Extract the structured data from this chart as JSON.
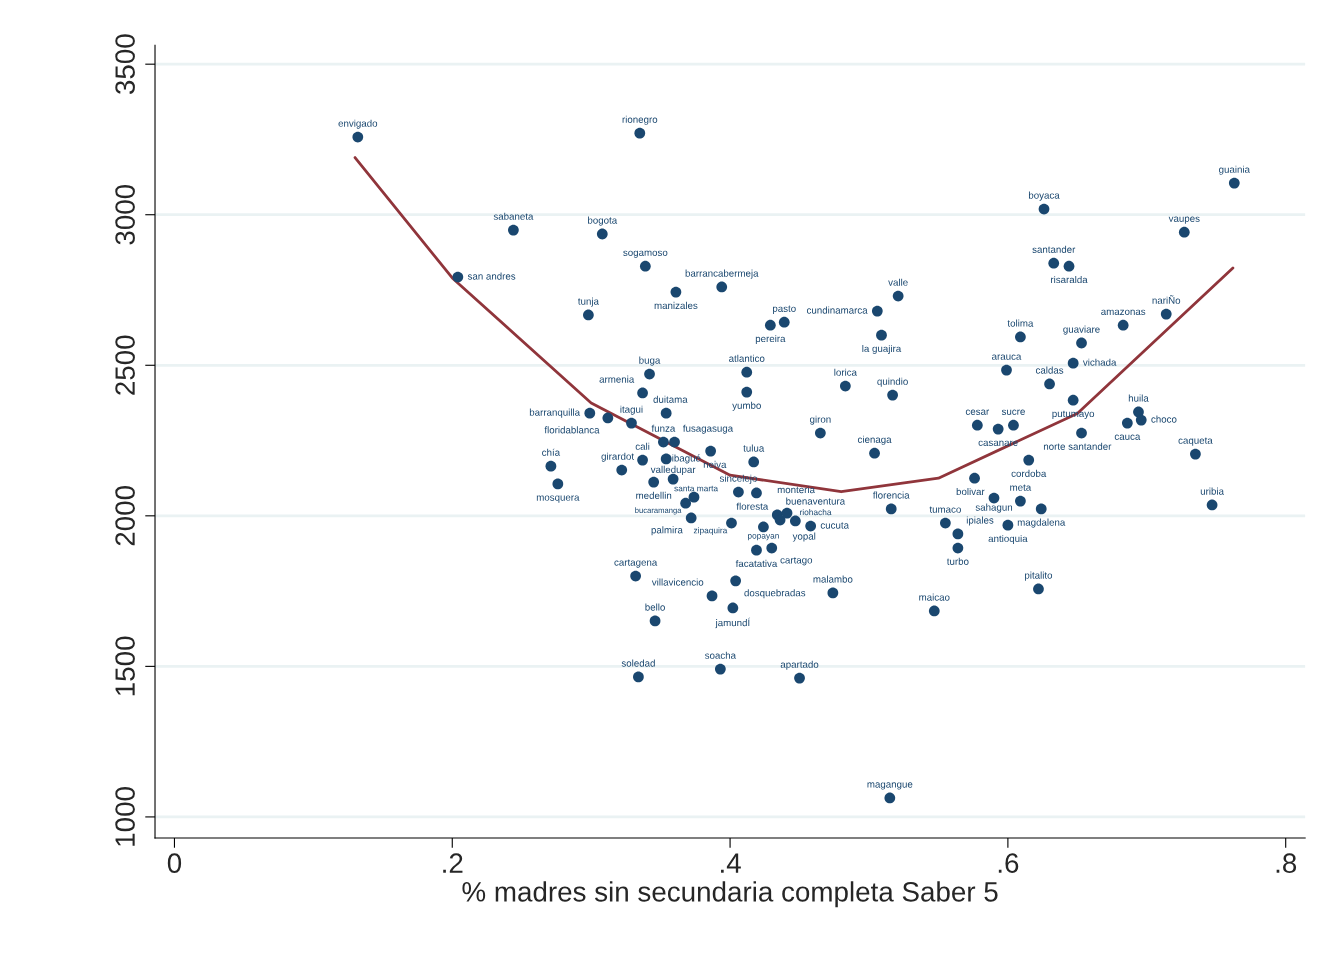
{
  "chart_data": {
    "type": "scatter",
    "xlabel": "% madres sin secundaria completa Saber 5",
    "xlim": [
      -0.014,
      0.814
    ],
    "ylim": [
      930,
      3563
    ],
    "xticks": [
      0,
      {
        "value": 0.2,
        "label": ".2"
      },
      {
        "value": 0.4,
        "label": ".4"
      },
      {
        "value": 0.6,
        "label": ".6"
      },
      {
        "value": 0.8,
        "label": ".8"
      }
    ],
    "yticks": [
      1000,
      1500,
      2000,
      2500,
      3000,
      3500
    ],
    "grid": "y",
    "legend": false,
    "marker": "circle",
    "series": [
      {
        "type": "scatter",
        "color": "#1a476f",
        "x": [
          0.132,
          0.335,
          0.763,
          0.626,
          0.244,
          0.308,
          0.727,
          0.339,
          0.633,
          0.644,
          0.204,
          0.394,
          0.361,
          0.521,
          0.506,
          0.714,
          0.298,
          0.683,
          0.439,
          0.429,
          0.509,
          0.609,
          0.653,
          0.647,
          0.342,
          0.412,
          0.599,
          0.63,
          0.483,
          0.337,
          0.412,
          0.517,
          0.647,
          0.694,
          0.696,
          0.686,
          0.299,
          0.312,
          0.329,
          0.354,
          0.578,
          0.593,
          0.604,
          0.653,
          0.465,
          0.352,
          0.36,
          0.386,
          0.271,
          0.276,
          0.322,
          0.337,
          0.354,
          0.345,
          0.359,
          0.374,
          0.368,
          0.372,
          0.401,
          0.424,
          0.419,
          0.43,
          0.417,
          0.406,
          0.419,
          0.434,
          0.436,
          0.441,
          0.447,
          0.458,
          0.404,
          0.387,
          0.402,
          0.332,
          0.346,
          0.474,
          0.334,
          0.393,
          0.45,
          0.515,
          0.547,
          0.622,
          0.516,
          0.555,
          0.564,
          0.564,
          0.6,
          0.59,
          0.609,
          0.624,
          0.576,
          0.615,
          0.504,
          0.735,
          0.747
        ],
        "values": [
          3258,
          3271,
          3105,
          3019,
          2949,
          2936,
          2942,
          2829,
          2839,
          2829,
          2793,
          2760,
          2743,
          2730,
          2680,
          2670,
          2667,
          2633,
          2643,
          2633,
          2600,
          2594,
          2574,
          2507,
          2471,
          2477,
          2484,
          2438,
          2431,
          2408,
          2411,
          2401,
          2384,
          2345,
          2318,
          2308,
          2341,
          2325,
          2308,
          2341,
          2301,
          2288,
          2301,
          2275,
          2275,
          2245,
          2245,
          2215,
          2165,
          2106,
          2152,
          2185,
          2189,
          2112,
          2122,
          2062,
          2042,
          1993,
          1976,
          1963,
          1886,
          1893,
          2179,
          2079,
          2076,
          2003,
          1986,
          2009,
          1983,
          1966,
          1784,
          1734,
          1694,
          1800,
          1651,
          1744,
          1465,
          1491,
          1461,
          1063,
          1684,
          1757,
          2023,
          1976,
          1940,
          1893,
          1969,
          2059,
          2049,
          2023,
          2125,
          2185,
          2208,
          2205,
          2036
        ],
        "value_labels": [
          "envigado",
          "rionegro",
          "guainia",
          "boyaca",
          "sabaneta",
          "bogota",
          "vaupes",
          "sogamoso",
          "santander",
          "risaralda",
          "san andres",
          "barrancabermeja",
          "manizales",
          "valle",
          "cundinamarca",
          "nariÑo",
          "tunja",
          "amazonas",
          "pasto",
          "pereira",
          "la guajira",
          "tolima",
          "guaviare",
          "vichada",
          "buga",
          "atlantico",
          "arauca",
          "caldas",
          "lorica",
          "armenia",
          "yumbo",
          "quindio",
          "putumayo",
          "huila",
          "choco",
          "cauca",
          "barranquilla",
          "floridablanca",
          "itagui",
          "duitama",
          "cesar",
          "casanare",
          "sucre",
          "norte santander",
          "giron",
          "funza",
          "fusagasuga",
          "neiva",
          "chía",
          "mosquera",
          "girardot",
          "cali",
          "ibagué",
          "medellin",
          "valledupar",
          "santa marta",
          "bucaramanga",
          "palmira",
          "zipaquira",
          "popayan",
          "facatativa",
          "cartago",
          "tulua",
          "sincelejo",
          "floresta",
          "buenaventura",
          "yopal",
          "monteria",
          "riohacha",
          "cucuta",
          "dosquebradas",
          "villavicencio",
          "jamundÍ",
          "cartagena",
          "bello",
          "malambo",
          "soledad",
          "soacha",
          "apartado",
          "magangue",
          "maicao",
          "pitalito",
          "florencia",
          "tumaco",
          "ipiales",
          "turbo",
          "antioquia",
          "sahagun",
          "meta",
          "magdalena",
          "bolivar",
          "cordoba",
          "cienaga",
          "caqueta",
          "uribia"
        ]
      },
      {
        "type": "line",
        "color": "#90353b",
        "marker": "none",
        "line_style": "solid",
        "x": [
          0.13,
          0.2,
          0.3,
          0.4,
          0.48,
          0.55,
          0.65,
          0.762
        ],
        "values": [
          3190,
          2790,
          2375,
          2135,
          2080,
          2125,
          2340,
          2823
        ]
      }
    ]
  }
}
